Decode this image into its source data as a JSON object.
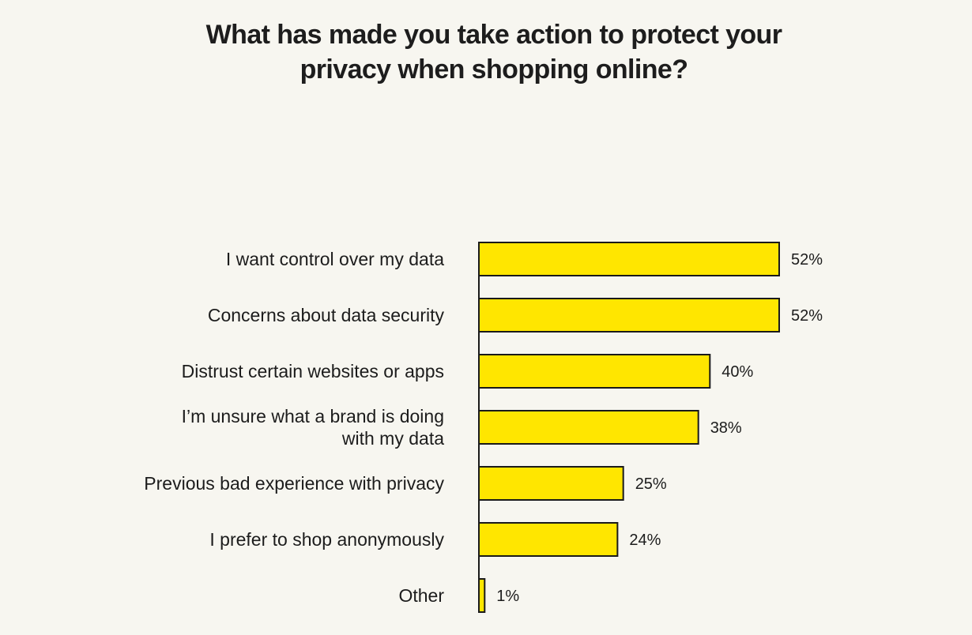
{
  "chart_data": {
    "type": "bar",
    "orientation": "horizontal",
    "title_lines": [
      "What has made you take action to protect your",
      "privacy when shopping online?"
    ],
    "categories": [
      [
        "I want control over my data"
      ],
      [
        "Concerns about data security"
      ],
      [
        "Distrust certain websites or apps"
      ],
      [
        "I’m unsure what a brand is doing",
        "with my data"
      ],
      [
        "Previous bad experience with privacy"
      ],
      [
        "I prefer to shop anonymously"
      ],
      [
        "Other"
      ]
    ],
    "values": [
      52,
      52,
      40,
      38,
      25,
      24,
      1
    ],
    "value_labels": [
      "52%",
      "52%",
      "40%",
      "38%",
      "25%",
      "24%",
      "1%"
    ],
    "unit": "%",
    "xlim": [
      0,
      52
    ],
    "grid": false,
    "legend": "none",
    "colors": {
      "bar_fill": "#ffe600",
      "bar_stroke": "#1a1a1a",
      "background": "#f7f6f0",
      "text": "#1c1c1c"
    }
  }
}
